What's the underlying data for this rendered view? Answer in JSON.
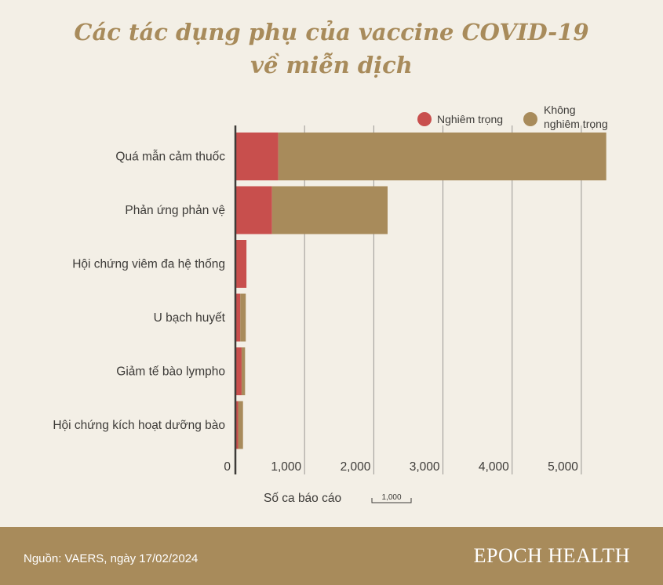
{
  "title": {
    "line1": "Các tác dụng phụ của vaccine COVID-19",
    "line2": "về miễn dịch"
  },
  "footer": {
    "source": "Nguồn: VAERS, ngày 17/02/2024",
    "brand": "EPOCH HEALTH"
  },
  "colors": {
    "serious": "#c84f4d",
    "non_serious": "#a88b5b",
    "background": "#f3efe6",
    "title": "#a88b5b"
  },
  "chart_data": {
    "type": "bar",
    "orientation": "horizontal",
    "stacked": true,
    "categories": [
      "Quá mẫn cảm thuốc",
      "Phản ứng phản vệ",
      "Hội chứng viêm đa hệ thống",
      "U bạch huyết",
      "Giảm tế bào lympho",
      "Hội chứng kích hoạt dưỡng bào"
    ],
    "series": [
      {
        "name": "Nghiêm trọng",
        "values": [
          620,
          530,
          160,
          70,
          90,
          40
        ]
      },
      {
        "name": "Không nghiêm trọng",
        "values": [
          4740,
          1670,
          0,
          80,
          50,
          70
        ]
      }
    ],
    "xlim": [
      0,
      5500
    ],
    "xticks": [
      0,
      1000,
      2000,
      3000,
      4000,
      5000
    ],
    "xtick_labels": [
      "0",
      "1,000",
      "2,000",
      "3,000",
      "4,000",
      "5,000"
    ],
    "xlabel": "Số ca báo cáo",
    "scale_label": "1,000",
    "legend_position": "top-right",
    "legend": [
      "Nghiêm trọng",
      "Không\nnghiêm trọng"
    ],
    "grid": "vertical"
  }
}
